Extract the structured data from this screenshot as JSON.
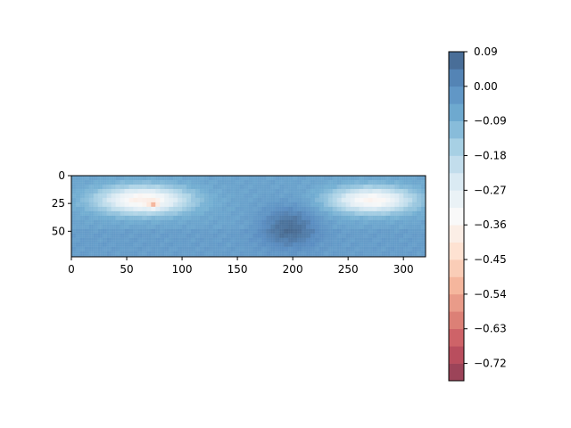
{
  "chart_data": {
    "type": "heatmap",
    "title": "",
    "xlabel": "",
    "ylabel": "",
    "xlim": [
      0,
      320
    ],
    "ylim": [
      73,
      0
    ],
    "x_ticks": [
      0,
      50,
      100,
      150,
      200,
      250,
      300
    ],
    "y_ticks": [
      0,
      25,
      50
    ],
    "x_tick_labels": [
      "0",
      "50",
      "100",
      "150",
      "200",
      "250",
      "300"
    ],
    "y_tick_labels": [
      "0",
      "25",
      "50"
    ],
    "colorbar": {
      "vmin": -0.765,
      "vmax": 0.09,
      "ticks": [
        0.09,
        0.0,
        -0.09,
        -0.18,
        -0.27,
        -0.36,
        -0.45,
        -0.54,
        -0.63,
        -0.72
      ],
      "tick_labels": [
        "0.09",
        "0.00",
        "−0.09",
        "−0.18",
        "−0.27",
        "−0.36",
        "−0.45",
        "−0.54",
        "−0.63",
        "−0.72"
      ],
      "levels": 19,
      "colormap": "RdBu",
      "alpha": 0.75
    },
    "features": {
      "background_value": -0.05,
      "bright_lobes": [
        {
          "center_x": 65,
          "center_y": 22,
          "radius_x": 60,
          "radius_y": 18,
          "min_value": -0.38
        },
        {
          "center_x": 272,
          "center_y": 22,
          "radius_x": 55,
          "radius_y": 17,
          "min_value": -0.36
        }
      ],
      "hot_spot": {
        "x": 74,
        "y": 26,
        "value": -0.52
      },
      "dark_region": {
        "center_x": 197,
        "center_y": 46,
        "radius_x": 28,
        "radius_y": 20,
        "value": 0.07
      },
      "grid_overlay": true
    }
  },
  "colors": {
    "background": "#ffffff",
    "axis": "#000000",
    "dark_blue": "#053061",
    "mid_blue": "#2166ac",
    "light_blue": "#92c5de",
    "white": "#f7f7f7",
    "light_red": "#f4a582",
    "red": "#d6604d"
  }
}
